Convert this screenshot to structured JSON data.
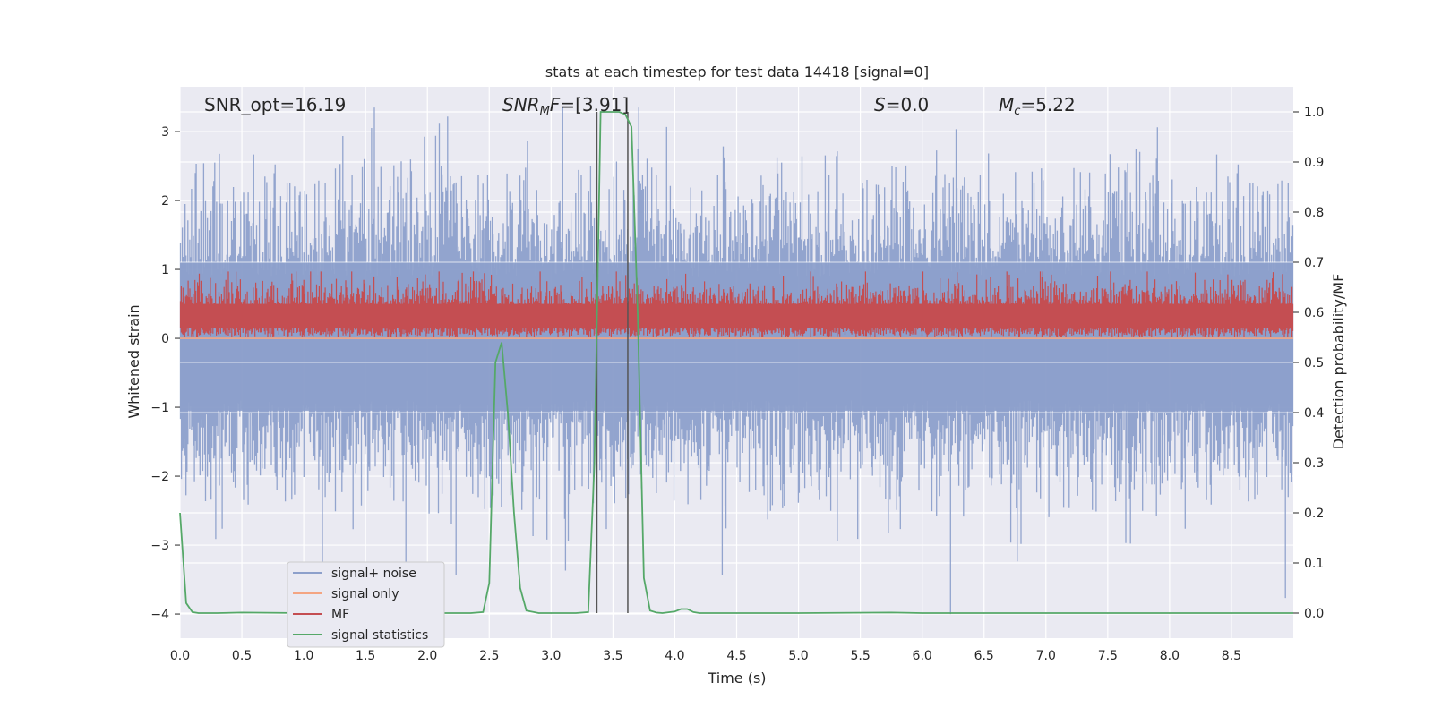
{
  "chart_data": {
    "type": "line",
    "title": "stats at each timestep for test data 14418 [signal=0]",
    "xlabel": "Time (s)",
    "ylabel": "Whitened strain",
    "y2label": "Detection probability/MF",
    "xlim": [
      0.0,
      9.0
    ],
    "ylim": [
      -4.35,
      3.65
    ],
    "y2lim": [
      -0.05,
      1.05
    ],
    "xticks": [
      "0.0",
      "0.5",
      "1.0",
      "1.5",
      "2.0",
      "2.5",
      "3.0",
      "3.5",
      "4.0",
      "4.5",
      "5.0",
      "5.5",
      "6.0",
      "6.5",
      "7.0",
      "7.5",
      "8.0",
      "8.5"
    ],
    "yticks": [
      "3",
      "2",
      "1",
      "0",
      "−1",
      "−2",
      "−3",
      "−4"
    ],
    "y2ticks": [
      "1.0",
      "0.9",
      "0.8",
      "0.7",
      "0.6",
      "0.5",
      "0.4",
      "0.3",
      "0.2",
      "0.1",
      "0.0"
    ],
    "grid": true,
    "legend_position": "lower-left",
    "annotations": {
      "snr_opt": "SNR_opt=16.19",
      "snr_mf": "[3.91]",
      "s_value": "0.0",
      "mc_value": "5.22"
    },
    "vertical_lines_x": [
      3.37,
      3.62
    ],
    "colors": {
      "noise": "#8da0cb",
      "signal_only": "#f4a582",
      "mf": "#c44e52",
      "stats": "#55a868",
      "bg": "#eaeaf2",
      "vline": "#555555"
    },
    "series": [
      {
        "name": "signal+ noise",
        "description_level": "dense noise, typical range -1.9 to 2.6"
      },
      {
        "name": "signal only",
        "values_y": 0.0
      },
      {
        "name": "MF",
        "description_level": "dense, range ~0 to 0.95"
      },
      {
        "name": "signal statistics",
        "x": [
          0.0,
          0.05,
          0.1,
          0.15,
          0.2,
          0.3,
          0.5,
          1.0,
          1.5,
          2.0,
          2.35,
          2.45,
          2.5,
          2.55,
          2.6,
          2.65,
          2.7,
          2.75,
          2.8,
          2.9,
          3.0,
          3.2,
          3.3,
          3.35,
          3.4,
          3.45,
          3.55,
          3.6,
          3.65,
          3.7,
          3.75,
          3.8,
          3.85,
          3.9,
          4.0,
          4.05,
          4.1,
          4.15,
          4.2,
          5.0,
          5.75,
          6.0,
          7.0,
          8.0,
          9.0
        ],
        "y": [
          0.2,
          0.02,
          0.002,
          0.0,
          0.0,
          0.0,
          0.001,
          0.0,
          0.0,
          0.0,
          0.0,
          0.002,
          0.06,
          0.5,
          0.54,
          0.4,
          0.2,
          0.05,
          0.005,
          0.0,
          0.0,
          0.0,
          0.002,
          0.3,
          1.0,
          1.0,
          1.0,
          0.995,
          0.97,
          0.6,
          0.07,
          0.005,
          0.001,
          0.0,
          0.003,
          0.008,
          0.008,
          0.002,
          0.0,
          0.0,
          0.001,
          0.0,
          0.0,
          0.0,
          0.0
        ]
      }
    ],
    "legend": [
      "signal+ noise",
      "signal only",
      "MF",
      "signal statistics"
    ]
  }
}
